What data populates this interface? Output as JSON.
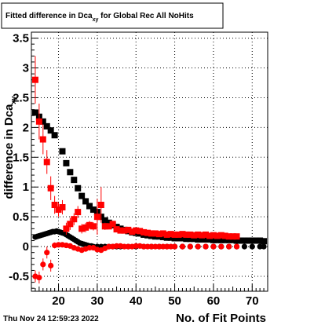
{
  "chart_data": {
    "type": "scatter",
    "title_main": "Fitted difference in Dca",
    "title_sub": "xy",
    "title_rest": " for Global Rec All NoHits",
    "xlabel": "No. of Fit Points",
    "ylabel": "difference in Dca",
    "ylabel_sub": "xy",
    "xlim": [
      13,
      74
    ],
    "ylim": [
      -0.75,
      3.6
    ],
    "xticks": [
      20,
      30,
      40,
      50,
      60,
      70
    ],
    "yticks": [
      -0.5,
      0,
      0.5,
      1,
      1.5,
      2,
      2.5,
      3,
      3.5
    ],
    "ytick_labels": [
      "-0.5",
      "0",
      "0.5",
      "1",
      "1.5",
      "2",
      "2.5",
      "3",
      "3.5"
    ],
    "grid": true,
    "footer": "Thu Nov 24 12:59:23 2022",
    "colors": {
      "black_series": "#000000",
      "red_series": "#ff0000"
    },
    "series": [
      {
        "color": "#000000",
        "marker": "square",
        "points": [
          [
            14,
            2.25
          ],
          [
            15,
            2.18
          ],
          [
            16,
            2.1
          ],
          [
            17,
            2.02
          ],
          [
            18,
            1.95
          ],
          [
            19,
            1.87
          ],
          [
            21,
            1.6
          ],
          [
            22,
            1.4
          ],
          [
            23,
            1.25
          ],
          [
            24,
            1.12
          ],
          [
            25,
            0.98
          ],
          [
            26,
            0.85
          ],
          [
            27,
            0.76
          ],
          [
            28,
            0.68
          ],
          [
            29,
            0.62
          ],
          [
            30,
            0.58
          ],
          [
            31,
            0.5
          ],
          [
            32,
            0.44
          ],
          [
            33,
            0.4
          ],
          [
            34,
            0.36
          ],
          [
            35,
            0.33
          ],
          [
            36,
            0.3
          ],
          [
            37,
            0.28
          ],
          [
            38,
            0.26
          ],
          [
            39,
            0.24
          ],
          [
            40,
            0.23
          ],
          [
            41,
            0.22
          ],
          [
            42,
            0.2
          ],
          [
            43,
            0.19
          ],
          [
            44,
            0.18
          ],
          [
            45,
            0.17
          ],
          [
            46,
            0.17
          ],
          [
            47,
            0.16
          ],
          [
            48,
            0.15
          ],
          [
            49,
            0.15
          ],
          [
            50,
            0.14
          ],
          [
            51,
            0.14
          ],
          [
            52,
            0.14
          ],
          [
            53,
            0.13
          ],
          [
            54,
            0.13
          ],
          [
            55,
            0.13
          ],
          [
            56,
            0.12
          ],
          [
            57,
            0.12
          ],
          [
            58,
            0.12
          ],
          [
            59,
            0.12
          ],
          [
            60,
            0.11
          ],
          [
            61,
            0.11
          ],
          [
            62,
            0.11
          ],
          [
            63,
            0.11
          ],
          [
            64,
            0.11
          ],
          [
            65,
            0.11
          ],
          [
            66,
            0.1
          ],
          [
            67,
            0.1
          ],
          [
            68,
            0.1
          ],
          [
            69,
            0.1
          ],
          [
            70,
            0.1
          ],
          [
            71,
            0.1
          ],
          [
            72,
            0.1
          ],
          [
            73,
            0.09
          ]
        ]
      },
      {
        "color": "#000000",
        "marker": "circle",
        "points": [
          [
            14,
            0.16
          ],
          [
            14.5,
            0.17
          ],
          [
            15,
            0.18
          ],
          [
            15.5,
            0.19
          ],
          [
            16,
            0.2
          ],
          [
            16.5,
            0.21
          ],
          [
            17,
            0.22
          ],
          [
            17.5,
            0.23
          ],
          [
            18,
            0.24
          ],
          [
            18.5,
            0.25
          ],
          [
            19,
            0.25
          ],
          [
            19.5,
            0.26
          ],
          [
            20,
            0.25
          ],
          [
            20.5,
            0.24
          ],
          [
            21,
            0.23
          ],
          [
            21.5,
            0.22
          ],
          [
            22,
            0.2
          ],
          [
            22.5,
            0.18
          ],
          [
            23,
            0.16
          ],
          [
            23.5,
            0.14
          ],
          [
            24,
            0.12
          ],
          [
            24.5,
            0.1
          ],
          [
            25,
            0.08
          ],
          [
            25.5,
            0.06
          ],
          [
            26,
            0.05
          ],
          [
            26.5,
            0.04
          ],
          [
            27,
            0.03
          ],
          [
            27.5,
            0.02
          ],
          [
            28,
            0.01
          ],
          [
            28.5,
            0.01
          ],
          [
            29,
            0.0
          ],
          [
            30,
            0.0
          ],
          [
            31,
            0.0
          ],
          [
            32,
            0.0
          ],
          [
            33,
            0.0
          ],
          [
            34,
            0.0
          ],
          [
            35,
            0.0
          ],
          [
            36,
            0.0
          ],
          [
            38,
            0.0
          ],
          [
            40,
            0.0
          ],
          [
            42,
            0.0
          ],
          [
            44,
            0.0
          ],
          [
            46,
            0.0
          ],
          [
            48,
            0.0
          ],
          [
            50,
            0.0
          ],
          [
            52,
            0.0
          ],
          [
            54,
            0.0
          ],
          [
            56,
            0.0
          ],
          [
            58,
            0.0
          ],
          [
            60,
            0.0
          ],
          [
            62,
            0.0
          ],
          [
            64,
            0.0
          ],
          [
            66,
            0.0
          ],
          [
            68,
            0.0
          ],
          [
            70,
            0.0
          ],
          [
            72,
            0.0
          ],
          [
            73,
            0.0
          ]
        ]
      },
      {
        "color": "#ff0000",
        "marker": "square",
        "points": [
          [
            14,
            2.8,
            0.4
          ],
          [
            15,
            2.1,
            0.3
          ],
          [
            16,
            1.8,
            0.25
          ],
          [
            17,
            1.42,
            0.2
          ],
          [
            18,
            0.98,
            0.2
          ],
          [
            19,
            0.7,
            0.15
          ],
          [
            20,
            0.62,
            0.12
          ],
          [
            21,
            0.66,
            0.12
          ],
          [
            22,
            0.3,
            0.1
          ],
          [
            23,
            0.38,
            0.1
          ],
          [
            24,
            0.46,
            0.1
          ],
          [
            25,
            0.58,
            0.1
          ],
          [
            26,
            0.3,
            0.08
          ],
          [
            27,
            0.32,
            0.08
          ],
          [
            28,
            0.36,
            0.07
          ],
          [
            29,
            0.34,
            0.07
          ],
          [
            30,
            0.5,
            0.3
          ],
          [
            31,
            0.7,
            0.3
          ],
          [
            32,
            0.34,
            0.06
          ],
          [
            33,
            0.34,
            0.05
          ],
          [
            34,
            0.38,
            0.05
          ],
          [
            35,
            0.29,
            0.04
          ],
          [
            36,
            0.27,
            0.04
          ],
          [
            37,
            0.27,
            0.04
          ],
          [
            38,
            0.28,
            0.04
          ],
          [
            39,
            0.25,
            0.03
          ],
          [
            40,
            0.27,
            0.03
          ],
          [
            41,
            0.26,
            0.03
          ],
          [
            42,
            0.24,
            0.03
          ],
          [
            43,
            0.23,
            0.03
          ],
          [
            44,
            0.22,
            0.03
          ],
          [
            45,
            0.22,
            0.03
          ],
          [
            46,
            0.21,
            0.02
          ],
          [
            47,
            0.22,
            0.02
          ],
          [
            48,
            0.2,
            0.02
          ],
          [
            49,
            0.21,
            0.02
          ],
          [
            50,
            0.2,
            0.02
          ],
          [
            51,
            0.2,
            0.02
          ],
          [
            52,
            0.21,
            0.02
          ],
          [
            53,
            0.2,
            0.02
          ],
          [
            54,
            0.2,
            0.02
          ],
          [
            55,
            0.19,
            0.02
          ],
          [
            56,
            0.2,
            0.02
          ],
          [
            57,
            0.19,
            0.02
          ],
          [
            58,
            0.2,
            0.02
          ],
          [
            59,
            0.18,
            0.02
          ],
          [
            60,
            0.19,
            0.02
          ],
          [
            61,
            0.18,
            0.02
          ],
          [
            62,
            0.19,
            0.02
          ],
          [
            63,
            0.18,
            0.02
          ],
          [
            64,
            0.17,
            0.02
          ],
          [
            65,
            0.17,
            0.02
          ],
          [
            66,
            0.17,
            0.02
          ]
        ]
      },
      {
        "color": "#ff0000",
        "marker": "circle",
        "points": [
          [
            14,
            -0.5,
            0.1
          ],
          [
            15,
            -0.52,
            0.1
          ],
          [
            16,
            -0.3,
            0.1
          ],
          [
            17,
            -0.1,
            0.1
          ],
          [
            18,
            -0.32,
            0.1
          ],
          [
            19,
            0.02,
            0.05
          ],
          [
            20,
            0.03,
            0.04
          ],
          [
            21,
            0.03,
            0.04
          ],
          [
            22,
            0.02,
            0.03
          ],
          [
            23,
            0.01,
            0.03
          ],
          [
            24,
            -0.02,
            0.03
          ],
          [
            25,
            -0.04,
            0.03
          ],
          [
            26,
            -0.06,
            0.03
          ],
          [
            27,
            -0.04,
            0.03
          ],
          [
            28,
            -0.02,
            0.02
          ],
          [
            29,
            -0.02,
            0.02
          ],
          [
            30,
            -0.05,
            0.03
          ],
          [
            31,
            -0.06,
            0.03
          ],
          [
            32,
            -0.03,
            0.02
          ],
          [
            33,
            0.0,
            0.02
          ],
          [
            34,
            0.0,
            0.02
          ],
          [
            35,
            0.01,
            0.02
          ],
          [
            36,
            0.01,
            0.02
          ],
          [
            37,
            0.0,
            0.02
          ],
          [
            38,
            0.0,
            0.02
          ],
          [
            39,
            0.0,
            0.02
          ],
          [
            40,
            0.01,
            0.02
          ],
          [
            41,
            0.01,
            0.02
          ],
          [
            42,
            0.0,
            0.02
          ],
          [
            43,
            0.0,
            0.02
          ],
          [
            44,
            0.0,
            0.02
          ],
          [
            45,
            0.0,
            0.02
          ],
          [
            46,
            0.0,
            0.02
          ],
          [
            47,
            0.0,
            0.02
          ],
          [
            48,
            0.0,
            0.02
          ],
          [
            49,
            0.0,
            0.02
          ],
          [
            50,
            0.0,
            0.02
          ],
          [
            52,
            0.0,
            0.02
          ],
          [
            54,
            0.0,
            0.02
          ],
          [
            56,
            0.0,
            0.02
          ],
          [
            58,
            0.0,
            0.02
          ],
          [
            60,
            0.0,
            0.02
          ],
          [
            62,
            0.0,
            0.02
          ],
          [
            64,
            0.0,
            0.02
          ],
          [
            66,
            0.0,
            0.02
          ]
        ]
      }
    ]
  }
}
